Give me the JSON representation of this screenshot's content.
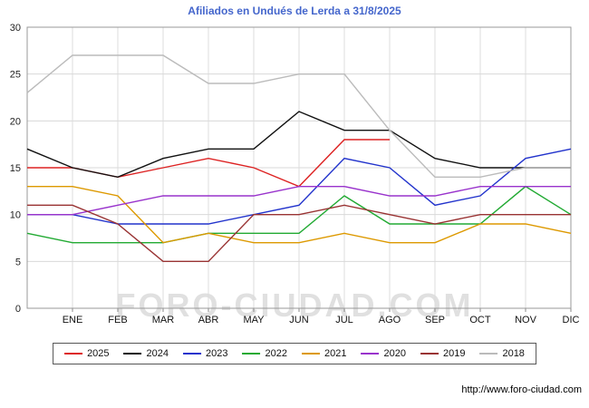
{
  "title": "Afiliados en Undués de Lerda a 31/8/2025",
  "title_color": "#4466cc",
  "watermark": "FORO-CIUDAD.COM",
  "footer_link": "http://www.foro-ciudad.com",
  "chart_data": {
    "type": "line",
    "x_labels": [
      "ENE",
      "FEB",
      "MAR",
      "ABR",
      "MAY",
      "JUN",
      "JUL",
      "AGO",
      "SEP",
      "OCT",
      "NOV",
      "DIC"
    ],
    "ylim": [
      0,
      30
    ],
    "y_ticks": [
      0,
      5,
      10,
      15,
      20,
      25,
      30
    ],
    "grid": true,
    "legend_position": "bottom",
    "note": "First value of each series is the point at the left axis edge before ENE; 2025 series ends in AGO (data to 31/8/2025).",
    "series": [
      {
        "name": "2025",
        "color": "#dd2222",
        "values": [
          15,
          15,
          14,
          15,
          16,
          15,
          13,
          18,
          18,
          null,
          null,
          null,
          null
        ]
      },
      {
        "name": "2024",
        "color": "#111111",
        "values": [
          17,
          15,
          14,
          16,
          17,
          17,
          21,
          19,
          19,
          16,
          15,
          15,
          15
        ]
      },
      {
        "name": "2023",
        "color": "#2233cc",
        "values": [
          10,
          10,
          9,
          9,
          9,
          10,
          11,
          16,
          15,
          11,
          12,
          16,
          17
        ]
      },
      {
        "name": "2022",
        "color": "#22aa33",
        "values": [
          8,
          7,
          7,
          7,
          8,
          8,
          8,
          12,
          9,
          9,
          9,
          13,
          10
        ]
      },
      {
        "name": "2021",
        "color": "#dd9900",
        "values": [
          13,
          13,
          12,
          7,
          8,
          7,
          7,
          8,
          7,
          7,
          9,
          9,
          8
        ]
      },
      {
        "name": "2020",
        "color": "#9933cc",
        "values": [
          10,
          10,
          11,
          12,
          12,
          12,
          13,
          13,
          12,
          12,
          13,
          13,
          13
        ]
      },
      {
        "name": "2019",
        "color": "#993333",
        "values": [
          11,
          11,
          9,
          5,
          5,
          10,
          10,
          11,
          10,
          9,
          10,
          10,
          10
        ]
      },
      {
        "name": "2018",
        "color": "#bbbbbb",
        "values": [
          23,
          27,
          27,
          27,
          24,
          24,
          25,
          25,
          19,
          14,
          14,
          15,
          15
        ]
      }
    ]
  }
}
